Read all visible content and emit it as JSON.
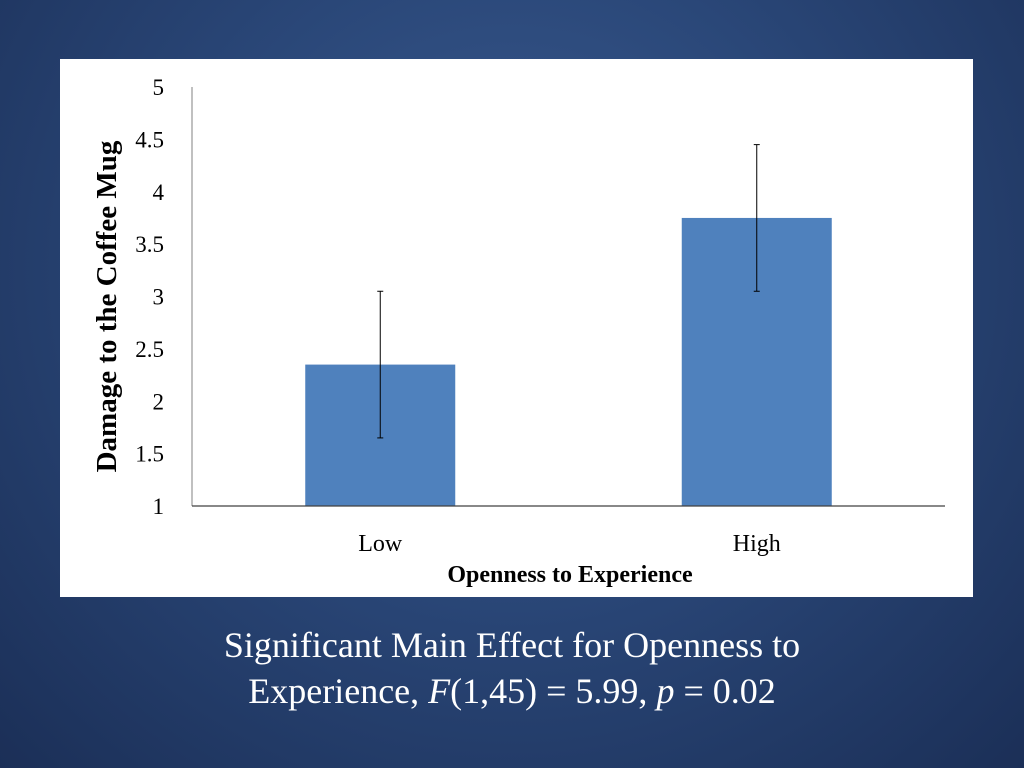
{
  "slide": {
    "caption_line1": "Significant Main Effect for Openness to",
    "caption_line2_prefix": "Experience, ",
    "caption_stat_F": "F",
    "caption_stat_F_args": "(1,45) = 5.99, ",
    "caption_stat_p": "p",
    "caption_stat_p_value": " = 0.02"
  },
  "colors": {
    "bar": "#4f81bd",
    "background_center": "#3a5a8f",
    "background_edge": "#1b2f57"
  },
  "chart_data": {
    "type": "bar",
    "title": "",
    "xlabel": "Openness to Experience",
    "ylabel": "Damage to the Coffee Mug",
    "categories": [
      "Low",
      "High"
    ],
    "values": [
      2.35,
      3.75
    ],
    "error_bars": [
      {
        "low": 1.65,
        "high": 3.05
      },
      {
        "low": 3.05,
        "high": 4.45
      }
    ],
    "ylim": [
      1,
      5
    ],
    "yticks": [
      1,
      1.5,
      2,
      2.5,
      3,
      3.5,
      4,
      4.5,
      5
    ],
    "ytick_labels": [
      "1",
      "1.5",
      "2",
      "2.5",
      "3",
      "3.5",
      "4",
      "4.5",
      "5"
    ],
    "grid": false,
    "legend": "none"
  }
}
